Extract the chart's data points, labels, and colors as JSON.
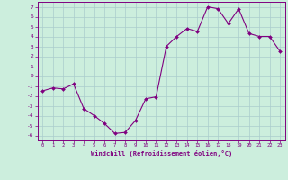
{
  "x": [
    0,
    1,
    2,
    3,
    4,
    5,
    6,
    7,
    8,
    9,
    10,
    11,
    12,
    13,
    14,
    15,
    16,
    17,
    18,
    19,
    20,
    21,
    22,
    23
  ],
  "y": [
    -1.5,
    -1.2,
    -1.3,
    -0.8,
    -3.3,
    -4.0,
    -4.8,
    -5.8,
    -5.7,
    -4.5,
    -2.3,
    -2.1,
    3.0,
    4.0,
    4.8,
    4.5,
    7.0,
    6.8,
    5.3,
    6.8,
    4.3,
    4.0,
    4.0,
    2.5
  ],
  "line_color": "#800080",
  "marker": "D",
  "markersize": 2.0,
  "linewidth": 0.8,
  "bg_color": "#cceedd",
  "grid_color": "#aacccc",
  "xlabel": "Windchill (Refroidissement éolien,°C)",
  "xlim": [
    -0.5,
    23.5
  ],
  "ylim": [
    -6.5,
    7.5
  ],
  "yticks": [
    -6,
    -5,
    -4,
    -3,
    -2,
    -1,
    0,
    1,
    2,
    3,
    4,
    5,
    6,
    7
  ],
  "xticks": [
    0,
    1,
    2,
    3,
    4,
    5,
    6,
    7,
    8,
    9,
    10,
    11,
    12,
    13,
    14,
    15,
    16,
    17,
    18,
    19,
    20,
    21,
    22,
    23
  ],
  "tick_color": "#800080",
  "label_color": "#800080",
  "spine_color": "#800080"
}
